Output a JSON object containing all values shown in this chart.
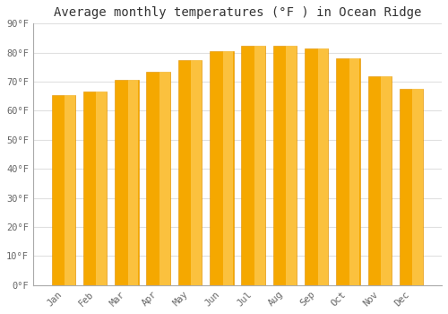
{
  "months": [
    "Jan",
    "Feb",
    "Mar",
    "Apr",
    "May",
    "Jun",
    "Jul",
    "Aug",
    "Sep",
    "Oct",
    "Nov",
    "Dec"
  ],
  "values": [
    65.5,
    66.5,
    70.5,
    73.5,
    77.5,
    80.5,
    82.5,
    82.5,
    81.5,
    78.0,
    72.0,
    67.5
  ],
  "bar_color_left": "#F5A800",
  "bar_color_right": "#FFD060",
  "bar_edge_color": "#E09000",
  "title": "Average monthly temperatures (°F ) in Ocean Ridge",
  "title_fontsize": 10,
  "ylim": [
    0,
    90
  ],
  "yticks": [
    0,
    10,
    20,
    30,
    40,
    50,
    60,
    70,
    80,
    90
  ],
  "ytick_labels": [
    "0°F",
    "10°F",
    "20°F",
    "30°F",
    "40°F",
    "50°F",
    "60°F",
    "70°F",
    "80°F",
    "90°F"
  ],
  "background_color": "#FFFFFF",
  "grid_color": "#E0E0E0",
  "tick_label_color": "#666666",
  "font_family": "monospace",
  "bar_width": 0.75
}
